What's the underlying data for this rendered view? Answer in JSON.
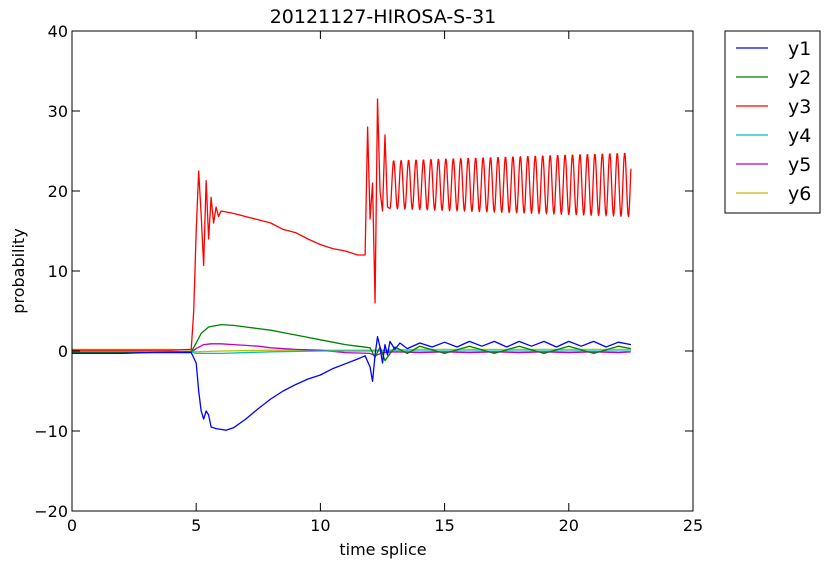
{
  "chart_data": {
    "type": "line",
    "title": "20121127-HIROSA-S-31",
    "xlabel": "time splice",
    "ylabel": "probability",
    "xlim": [
      0,
      25
    ],
    "ylim": [
      -20,
      40
    ],
    "xticks": [
      0,
      5,
      10,
      15,
      20,
      25
    ],
    "yticks": [
      -20,
      -10,
      0,
      10,
      20,
      30,
      40
    ],
    "xtick_labels": [
      "0",
      "5",
      "10",
      "15",
      "20",
      "25"
    ],
    "ytick_labels": [
      "−20",
      "−10",
      "0",
      "10",
      "20",
      "30",
      "40"
    ],
    "grid": false,
    "legend_position": "outside-top-right",
    "series": [
      {
        "name": "y1",
        "color": "#0000ff",
        "x": [
          0,
          1,
          2,
          3,
          4,
          4.8,
          5.0,
          5.1,
          5.2,
          5.3,
          5.4,
          5.5,
          5.6,
          5.8,
          6.0,
          6.2,
          6.5,
          7.0,
          7.5,
          8.0,
          8.5,
          9.0,
          9.5,
          10.0,
          10.5,
          11.0,
          11.5,
          11.8,
          12.0,
          12.1,
          12.2,
          12.3,
          12.4,
          12.5,
          12.6,
          12.7,
          12.8,
          13.0,
          13.2,
          13.5,
          14.0,
          14.5,
          15.0,
          15.5,
          16.0,
          16.5,
          17.0,
          17.5,
          18.0,
          18.5,
          19.0,
          19.5,
          20.0,
          20.5,
          21.0,
          21.5,
          22.0,
          22.5
        ],
        "y": [
          -0.3,
          -0.3,
          -0.3,
          -0.2,
          -0.2,
          -0.2,
          -1.5,
          -5.0,
          -7.5,
          -8.5,
          -7.5,
          -8.0,
          -9.5,
          -9.7,
          -9.8,
          -9.9,
          -9.6,
          -8.5,
          -7.2,
          -6.0,
          -5.0,
          -4.2,
          -3.5,
          -3.0,
          -2.2,
          -1.6,
          -1.0,
          -0.6,
          -2.0,
          -3.8,
          -0.5,
          1.8,
          0.5,
          -1.5,
          0.8,
          -0.5,
          1.2,
          0.2,
          1.0,
          0.3,
          1.0,
          0.5,
          1.1,
          0.5,
          1.2,
          0.6,
          1.2,
          0.5,
          1.2,
          0.6,
          1.2,
          0.5,
          1.2,
          0.6,
          1.2,
          0.5,
          1.1,
          0.8
        ]
      },
      {
        "name": "y2",
        "color": "#008000",
        "x": [
          0,
          1,
          2,
          3,
          4,
          4.8,
          5.0,
          5.2,
          5.5,
          6.0,
          6.5,
          7.0,
          7.5,
          8.0,
          8.5,
          9.0,
          9.5,
          10.0,
          10.5,
          11.0,
          11.5,
          12.0,
          12.2,
          12.4,
          12.6,
          13.0,
          13.5,
          14.0,
          15.0,
          16.0,
          17.0,
          18.0,
          19.0,
          20.0,
          21.0,
          22.0,
          22.5
        ],
        "y": [
          -0.2,
          -0.2,
          -0.2,
          -0.2,
          -0.1,
          -0.1,
          1.0,
          2.2,
          3.0,
          3.3,
          3.2,
          3.0,
          2.8,
          2.6,
          2.3,
          2.0,
          1.7,
          1.4,
          1.1,
          0.8,
          0.6,
          0.4,
          -0.8,
          0.5,
          -1.2,
          0.5,
          -0.3,
          0.6,
          -0.3,
          0.6,
          -0.3,
          0.6,
          -0.3,
          0.6,
          -0.3,
          0.6,
          0.3
        ]
      },
      {
        "name": "y3",
        "color": "#ff0000",
        "x": [
          0,
          1,
          2,
          3,
          4,
          4.8,
          4.9,
          5.0,
          5.1,
          5.2,
          5.3,
          5.4,
          5.5,
          5.6,
          5.7,
          5.8,
          5.9,
          6.0,
          6.5,
          7.0,
          7.5,
          8.0,
          8.5,
          9.0,
          9.5,
          10.0,
          10.5,
          11.0,
          11.5,
          11.8,
          11.9,
          12.0,
          12.1,
          12.2,
          12.3,
          12.4,
          12.5,
          12.6,
          12.7
        ],
        "y": [
          0.1,
          0.1,
          0.1,
          0.1,
          0.1,
          0.2,
          5.0,
          15.0,
          22.5,
          17.0,
          10.7,
          21.3,
          14.0,
          19.2,
          16.0,
          18.0,
          16.8,
          17.5,
          17.2,
          16.8,
          16.4,
          16.0,
          15.2,
          14.8,
          14.0,
          13.3,
          12.8,
          12.5,
          12.0,
          12.0,
          28.0,
          16.5,
          21.0,
          6.0,
          31.5,
          20.0,
          17.5,
          27.0,
          18.0
        ],
        "oscillation": {
          "x_start": 12.8,
          "x_end": 22.5,
          "period": 0.3,
          "center": 20.8,
          "amplitude_start": 3.0,
          "amplitude_end": 4.0
        }
      },
      {
        "name": "y4",
        "color": "#00bfbf",
        "x": [
          0,
          2,
          4,
          4.8,
          5.0,
          6.0,
          8.0,
          10.0,
          12.0,
          13.0,
          15.0,
          17.0,
          19.0,
          21.0,
          22.5
        ],
        "y": [
          -0.1,
          -0.1,
          -0.1,
          -0.1,
          -0.3,
          -0.3,
          -0.1,
          0.0,
          0.0,
          0.0,
          0.0,
          0.0,
          0.0,
          0.0,
          0.0
        ]
      },
      {
        "name": "y5",
        "color": "#bf00bf",
        "x": [
          0,
          2,
          4,
          4.8,
          5.0,
          5.3,
          5.6,
          6.0,
          6.5,
          7.0,
          7.5,
          8.0,
          9.0,
          10.0,
          11.0,
          12.0,
          12.2,
          12.5,
          13.0,
          14.0,
          15.0,
          16.0,
          17.0,
          18.0,
          19.0,
          20.0,
          21.0,
          22.0,
          22.5
        ],
        "y": [
          -0.1,
          -0.1,
          -0.1,
          -0.1,
          0.3,
          0.8,
          0.9,
          0.9,
          0.8,
          0.7,
          0.6,
          0.4,
          0.2,
          0.1,
          -0.2,
          -0.3,
          -0.6,
          -0.2,
          -0.1,
          -0.2,
          -0.1,
          -0.2,
          -0.1,
          -0.2,
          -0.1,
          -0.2,
          -0.1,
          -0.2,
          -0.1
        ]
      },
      {
        "name": "y6",
        "color": "#bfbf00",
        "x": [
          0,
          2,
          4,
          4.8,
          5.0,
          6.0,
          8.0,
          10.0,
          12.0,
          14.0,
          16.0,
          18.0,
          20.0,
          22.5
        ],
        "y": [
          0.2,
          0.2,
          0.2,
          0.1,
          -0.1,
          0.0,
          0.1,
          0.1,
          0.1,
          0.2,
          0.2,
          0.2,
          0.2,
          0.2
        ]
      }
    ]
  }
}
